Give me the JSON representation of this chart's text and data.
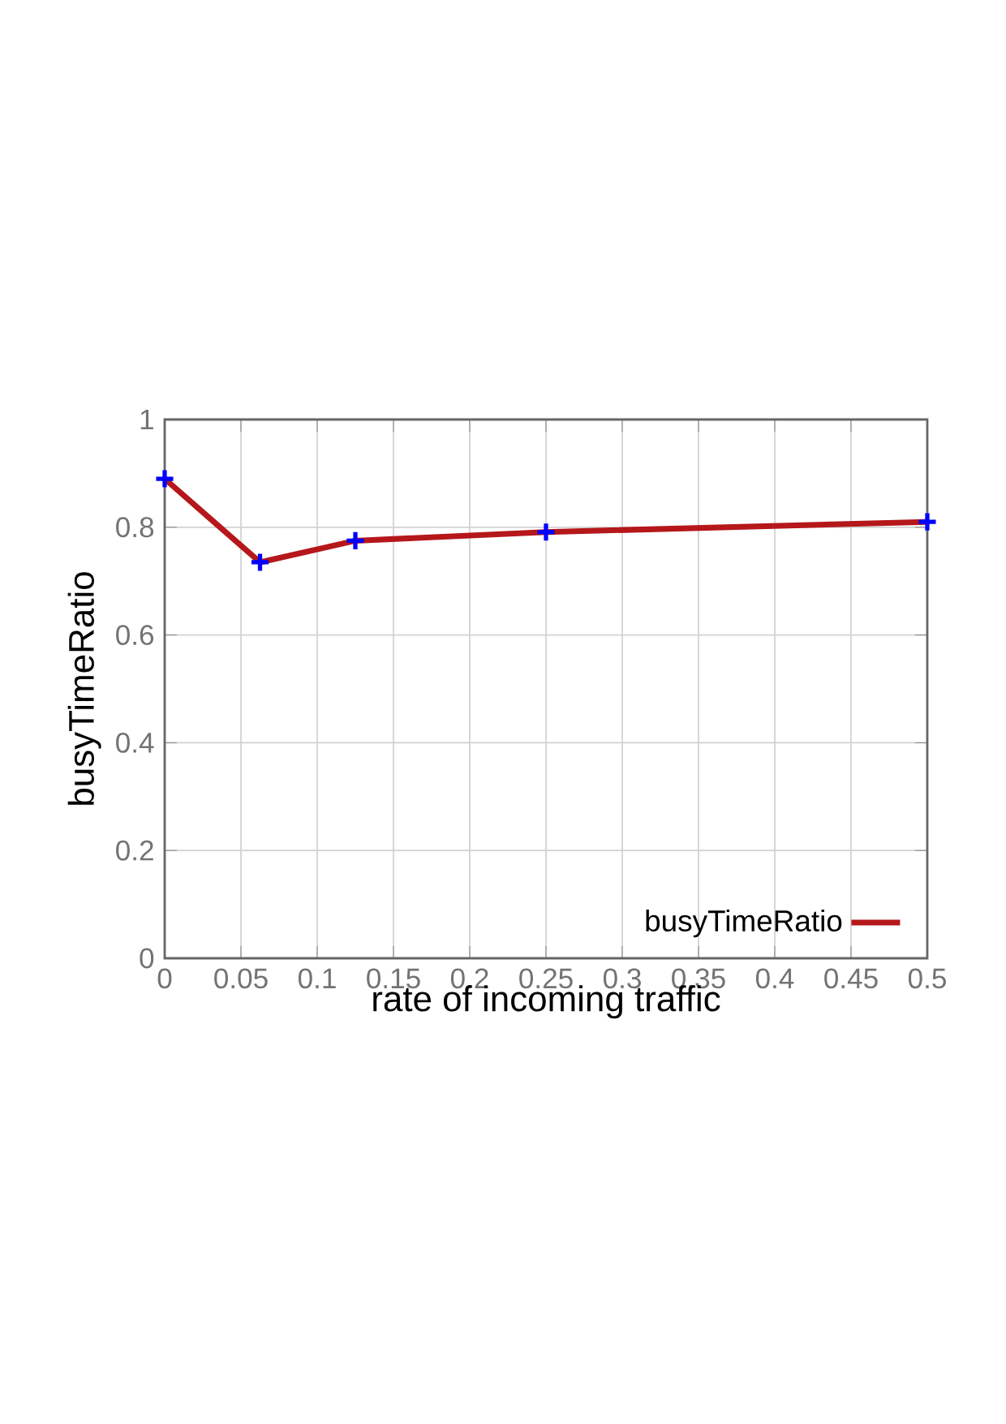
{
  "chart_data": {
    "type": "line",
    "xlabel": "rate of incoming traffic",
    "ylabel": "busyTimeRatio",
    "x": [
      0,
      0.0625,
      0.125,
      0.25,
      0.5
    ],
    "series": [
      {
        "name": "busyTimeRatio",
        "color": "#b5171b",
        "values": [
          0.89,
          0.735,
          0.775,
          0.791,
          0.81
        ],
        "marker": "none"
      },
      {
        "type": "scatter",
        "color": "#0000ff",
        "values": [
          0.89,
          0.735,
          0.775,
          0.791,
          0.81
        ],
        "marker": "cross"
      }
    ],
    "xlim": [
      0,
      0.5
    ],
    "ylim": [
      0,
      1
    ],
    "xticks": [
      0,
      0.05,
      0.1,
      0.15,
      0.2,
      0.25,
      0.3,
      0.35,
      0.4,
      0.45,
      0.5
    ],
    "yticks": [
      0,
      0.2,
      0.4,
      0.6,
      0.8,
      1
    ],
    "grid": true,
    "legend": "bottom right",
    "line_style": "solid"
  }
}
